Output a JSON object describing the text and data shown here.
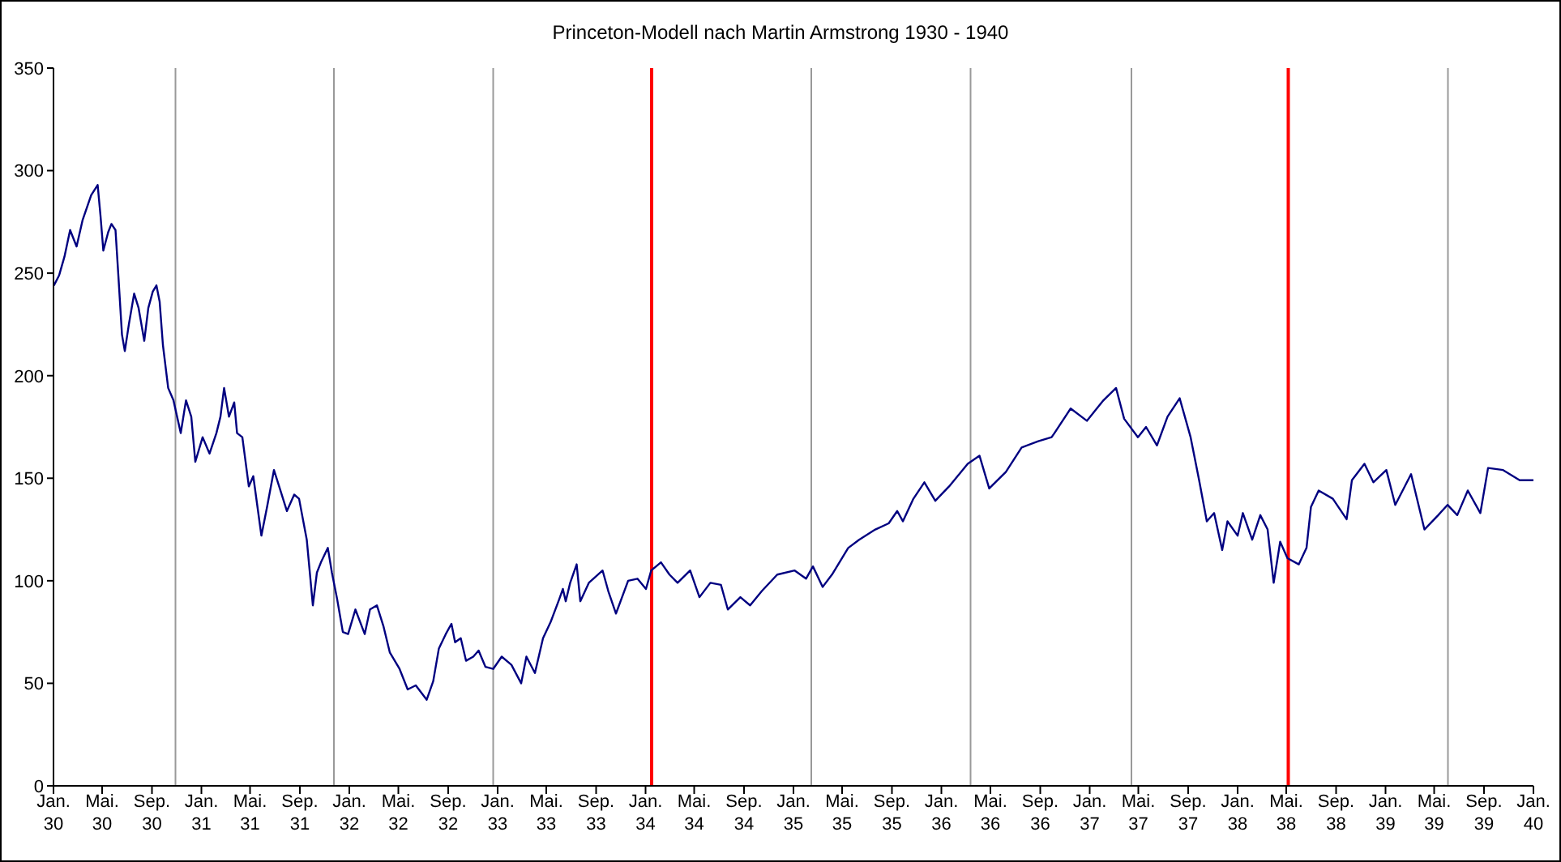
{
  "chart_data": {
    "type": "line",
    "title": "Princeton-Modell nach Martin Armstrong 1930 - 1940",
    "x": [
      "1930-01-02",
      "1930-01-15",
      "1930-01-28",
      "1930-02-11",
      "1930-02-27",
      "1930-03-14",
      "1930-04-04",
      "1930-04-20",
      "1930-04-27",
      "1930-05-04",
      "1930-05-16",
      "1930-05-24",
      "1930-06-03",
      "1930-06-10",
      "1930-06-19",
      "1930-06-26",
      "1930-07-06",
      "1930-07-19",
      "1930-07-30",
      "1930-08-13",
      "1930-08-23",
      "1930-09-03",
      "1930-09-12",
      "1930-09-20",
      "1930-09-28",
      "1930-10-11",
      "1930-10-24",
      "1930-11-11",
      "1930-11-24",
      "1930-12-07",
      "1930-12-17",
      "1931-01-04",
      "1931-01-21",
      "1931-02-07",
      "1931-02-17",
      "1931-02-26",
      "1931-03-10",
      "1931-03-23",
      "1931-03-30",
      "1931-04-12",
      "1931-04-28",
      "1931-05-09",
      "1931-05-29",
      "1931-06-12",
      "1931-06-29",
      "1931-07-15",
      "1931-07-31",
      "1931-08-18",
      "1931-08-30",
      "1931-09-18",
      "1931-10-03",
      "1931-10-13",
      "1931-10-23",
      "1931-11-09",
      "1931-11-19",
      "1931-12-02",
      "1931-12-16",
      "1931-12-29",
      "1932-01-16",
      "1932-02-08",
      "1932-02-21",
      "1932-03-09",
      "1932-03-25",
      "1932-04-10",
      "1932-05-04",
      "1932-05-24",
      "1932-06-13",
      "1932-07-10",
      "1932-07-26",
      "1932-08-09",
      "1932-08-26",
      "1932-09-09",
      "1932-09-18",
      "1932-10-02",
      "1932-10-15",
      "1932-11-02",
      "1932-11-15",
      "1932-12-02",
      "1932-12-21",
      "1933-01-11",
      "1933-02-04",
      "1933-02-28",
      "1933-03-13",
      "1933-04-03",
      "1933-04-23",
      "1933-05-12",
      "1933-06-02",
      "1933-06-11",
      "1933-06-18",
      "1933-06-29",
      "1933-07-15",
      "1933-07-24",
      "1933-08-14",
      "1933-09-17",
      "1933-10-01",
      "1933-10-20",
      "1933-11-19",
      "1933-12-12",
      "1934-01-02",
      "1934-01-15",
      "1934-02-08",
      "1934-03-01",
      "1934-03-21",
      "1934-04-21",
      "1934-05-14",
      "1934-06-10",
      "1934-07-06",
      "1934-07-23",
      "1934-08-23",
      "1934-09-16",
      "1934-10-15",
      "1934-11-22",
      "1935-01-04",
      "1935-02-01",
      "1935-02-18",
      "1935-03-14",
      "1935-04-06",
      "1935-05-16",
      "1935-06-12",
      "1935-07-22",
      "1935-08-24",
      "1935-09-14",
      "1935-09-28",
      "1935-10-24",
      "1935-11-20",
      "1935-12-17",
      "1936-01-20",
      "1936-03-06",
      "1936-04-04",
      "1936-04-28",
      "1936-06-08",
      "1936-07-17",
      "1936-08-27",
      "1936-09-29",
      "1936-10-06",
      "1936-11-15",
      "1936-12-25",
      "1937-02-04",
      "1937-03-07",
      "1937-03-27",
      "1937-04-30",
      "1937-05-20",
      "1937-06-16",
      "1937-07-12",
      "1937-08-11",
      "1937-09-07",
      "1937-09-28",
      "1937-10-17",
      "1937-11-04",
      "1937-11-24",
      "1937-12-07",
      "1938-01-01",
      "1938-01-14",
      "1938-02-06",
      "1938-02-26",
      "1938-03-16",
      "1938-03-31",
      "1938-04-16",
      "1938-05-04",
      "1938-06-01",
      "1938-06-20",
      "1938-07-01",
      "1938-07-20",
      "1938-08-24",
      "1938-09-27",
      "1938-10-10",
      "1938-11-10",
      "1938-12-02",
      "1939-01-03",
      "1939-01-25",
      "1939-03-05",
      "1939-04-07",
      "1939-05-11",
      "1939-06-03",
      "1939-06-27",
      "1939-07-23",
      "1939-08-23",
      "1939-09-11",
      "1939-10-18",
      "1939-11-28",
      "1940-01-01"
    ],
    "series": [
      {
        "color": "#000080",
        "values": [
          244,
          249,
          258,
          271,
          263,
          276,
          288,
          293,
          278,
          261,
          270,
          274,
          271,
          249,
          220,
          212,
          225,
          240,
          233,
          217,
          233,
          241,
          244,
          236,
          215,
          194,
          188,
          172,
          188,
          180,
          158,
          170,
          162,
          172,
          180,
          194,
          180,
          187,
          172,
          170,
          146,
          151,
          122,
          136,
          154,
          144,
          134,
          142,
          140,
          120,
          88,
          104,
          109,
          116,
          104,
          91,
          75,
          74,
          86,
          74,
          86,
          88,
          78,
          65,
          57,
          47,
          49,
          42,
          51,
          67,
          74,
          79,
          70,
          72,
          61,
          63,
          66,
          58,
          57,
          63,
          59,
          50,
          63,
          55,
          72,
          80,
          91,
          96,
          90,
          99,
          108,
          90,
          99,
          105,
          95,
          84,
          100,
          101,
          96,
          105,
          109,
          103,
          99,
          105,
          92,
          99,
          98,
          86,
          92,
          88,
          95,
          103,
          105,
          101,
          107,
          97,
          103,
          116,
          120,
          125,
          128,
          134,
          129,
          140,
          148,
          139,
          146,
          157,
          161,
          145,
          153,
          165,
          168,
          170,
          172,
          184,
          178,
          188,
          194,
          179,
          170,
          175,
          166,
          180,
          189,
          170,
          149,
          129,
          133,
          115,
          129,
          122,
          133,
          120,
          132,
          125,
          99,
          119,
          111,
          108,
          116,
          136,
          144,
          140,
          130,
          149,
          157,
          148,
          154,
          137,
          152,
          125,
          132,
          137,
          132,
          144,
          133,
          155,
          154,
          149,
          149
        ]
      }
    ],
    "xlim": [
      "1930-01-01",
      "1940-01-01"
    ],
    "xticks": [
      {
        "value": "1930-01-01",
        "label": "Jan. 30"
      },
      {
        "value": "1930-05-01",
        "label": "Mai. 30"
      },
      {
        "value": "1930-09-01",
        "label": "Sep. 30"
      },
      {
        "value": "1931-01-01",
        "label": "Jan. 31"
      },
      {
        "value": "1931-05-01",
        "label": "Mai. 31"
      },
      {
        "value": "1931-09-01",
        "label": "Sep. 31"
      },
      {
        "value": "1932-01-01",
        "label": "Jan. 32"
      },
      {
        "value": "1932-05-01",
        "label": "Mai. 32"
      },
      {
        "value": "1932-09-01",
        "label": "Sep. 32"
      },
      {
        "value": "1933-01-01",
        "label": "Jan. 33"
      },
      {
        "value": "1933-05-01",
        "label": "Mai. 33"
      },
      {
        "value": "1933-09-01",
        "label": "Sep. 33"
      },
      {
        "value": "1934-01-01",
        "label": "Jan. 34"
      },
      {
        "value": "1934-05-01",
        "label": "Mai. 34"
      },
      {
        "value": "1934-09-01",
        "label": "Sep. 34"
      },
      {
        "value": "1935-01-01",
        "label": "Jan. 35"
      },
      {
        "value": "1935-05-01",
        "label": "Mai. 35"
      },
      {
        "value": "1935-09-01",
        "label": "Sep. 35"
      },
      {
        "value": "1936-01-01",
        "label": "Jan. 36"
      },
      {
        "value": "1936-05-01",
        "label": "Mai. 36"
      },
      {
        "value": "1936-09-01",
        "label": "Sep. 36"
      },
      {
        "value": "1937-01-01",
        "label": "Jan. 37"
      },
      {
        "value": "1937-05-01",
        "label": "Mai. 37"
      },
      {
        "value": "1937-09-01",
        "label": "Sep. 37"
      },
      {
        "value": "1938-01-01",
        "label": "Jan. 38"
      },
      {
        "value": "1938-05-01",
        "label": "Mai. 38"
      },
      {
        "value": "1938-09-01",
        "label": "Sep. 38"
      },
      {
        "value": "1939-01-01",
        "label": "Jan. 39"
      },
      {
        "value": "1939-05-01",
        "label": "Mai. 39"
      },
      {
        "value": "1939-09-01",
        "label": "Sep. 39"
      },
      {
        "value": "1940-01-01",
        "label": "Jan. 40"
      }
    ],
    "ylim": [
      0,
      350
    ],
    "yticks": [
      0,
      50,
      100,
      150,
      200,
      250,
      300,
      350
    ],
    "ref_lines": [
      {
        "axis": "x",
        "value": "1930-10-29",
        "color": "#999999"
      },
      {
        "axis": "x",
        "value": "1931-11-24",
        "color": "#999999"
      },
      {
        "axis": "x",
        "value": "1932-12-21",
        "color": "#999999"
      },
      {
        "axis": "x",
        "value": "1934-01-16",
        "color": "#ff0000"
      },
      {
        "axis": "x",
        "value": "1935-02-14",
        "color": "#999999"
      },
      {
        "axis": "x",
        "value": "1936-03-13",
        "color": "#999999"
      },
      {
        "axis": "x",
        "value": "1937-04-14",
        "color": "#999999"
      },
      {
        "axis": "x",
        "value": "1938-05-06",
        "color": "#ff0000"
      },
      {
        "axis": "x",
        "value": "1939-06-04",
        "color": "#999999"
      }
    ],
    "line_style": "solid",
    "marker": "none"
  }
}
